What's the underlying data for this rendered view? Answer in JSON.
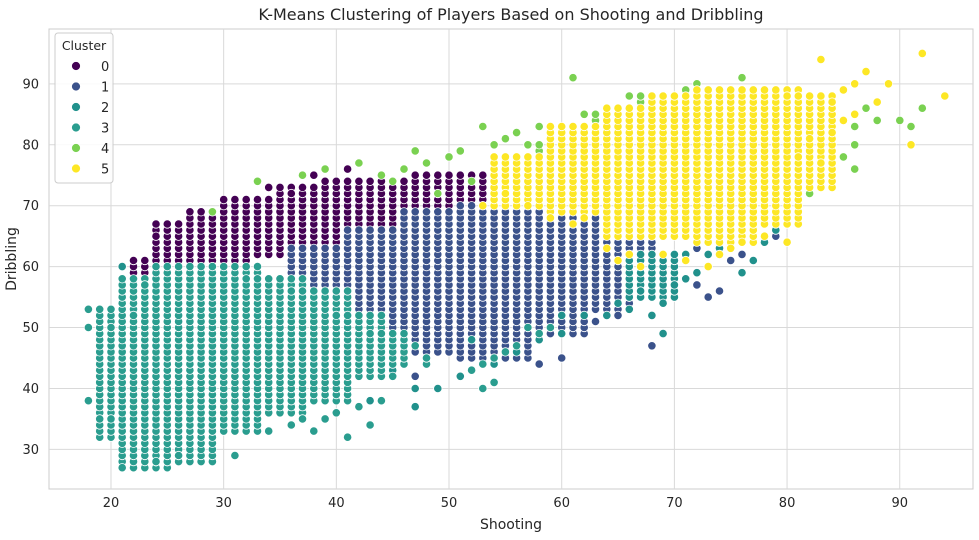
{
  "chart_data": {
    "type": "scatter",
    "title": "K-Means Clustering of Players Based on Shooting and Dribbling",
    "xlabel": "Shooting",
    "ylabel": "Dribbling",
    "xlim": [
      14.5,
      96.5
    ],
    "ylim": [
      23.5,
      99
    ],
    "xticks": [
      20,
      30,
      40,
      50,
      60,
      70,
      80,
      90
    ],
    "yticks": [
      30,
      40,
      50,
      60,
      70,
      80,
      90
    ],
    "grid": true,
    "legend": {
      "title": "Cluster",
      "position": "top-left"
    },
    "series": [
      {
        "name": "0",
        "color": "#440154",
        "regions": [
          [
            22,
            26,
            56,
            61
          ],
          [
            24,
            28,
            60,
            67
          ],
          [
            27,
            32,
            61,
            69
          ],
          [
            30,
            36,
            62,
            71
          ],
          [
            35,
            40,
            64,
            73
          ],
          [
            39,
            44,
            65,
            74
          ],
          [
            43,
            48,
            66,
            74
          ],
          [
            47,
            51,
            67,
            75
          ],
          [
            50,
            53,
            69,
            75
          ]
        ],
        "points": [
          [
            22,
            61
          ],
          [
            24,
            65
          ],
          [
            34,
            73
          ],
          [
            36,
            72
          ],
          [
            38,
            75
          ],
          [
            43,
            74
          ],
          [
            45,
            73
          ],
          [
            41,
            76
          ],
          [
            48,
            75
          ]
        ]
      },
      {
        "name": "1",
        "color": "#3b528b",
        "regions": [
          [
            36,
            42,
            50,
            63
          ],
          [
            41,
            47,
            48,
            66
          ],
          [
            46,
            52,
            46,
            69
          ],
          [
            51,
            57,
            45,
            70
          ],
          [
            56,
            62,
            49,
            70
          ],
          [
            61,
            66,
            53,
            70
          ],
          [
            65,
            68,
            55,
            68
          ]
        ],
        "points": [
          [
            37,
            48
          ],
          [
            40,
            46
          ],
          [
            44,
            44
          ],
          [
            47,
            42
          ],
          [
            58,
            44
          ],
          [
            60,
            45
          ],
          [
            63,
            51
          ],
          [
            68,
            47
          ],
          [
            73,
            55
          ],
          [
            74,
            56
          ],
          [
            75,
            61
          ],
          [
            77,
            66
          ],
          [
            79,
            65
          ],
          [
            72,
            63
          ],
          [
            70,
            60
          ],
          [
            76,
            62
          ],
          [
            70,
            55
          ],
          [
            65,
            52
          ],
          [
            72,
            57
          ],
          [
            78,
            68
          ]
        ]
      },
      {
        "name": "2",
        "color": "#21918c",
        "regions": [
          [
            66,
            70,
            55,
            62
          ]
        ],
        "points": [
          [
            21,
            55
          ],
          [
            22,
            56
          ],
          [
            21,
            60
          ],
          [
            34,
            45
          ],
          [
            37,
            44
          ],
          [
            39,
            42
          ],
          [
            41,
            40
          ],
          [
            42,
            42
          ],
          [
            43,
            38
          ],
          [
            45,
            43
          ],
          [
            47,
            37
          ],
          [
            47,
            40
          ],
          [
            49,
            40
          ],
          [
            51,
            42
          ],
          [
            52,
            43
          ],
          [
            52,
            48
          ],
          [
            54,
            44
          ],
          [
            56,
            46
          ],
          [
            58,
            48
          ],
          [
            60,
            49
          ],
          [
            60,
            52
          ],
          [
            62,
            52
          ],
          [
            64,
            52
          ],
          [
            65,
            54
          ],
          [
            66,
            53
          ],
          [
            67,
            56
          ],
          [
            68,
            52
          ],
          [
            69,
            49
          ],
          [
            69,
            54
          ],
          [
            70,
            57
          ],
          [
            71,
            58
          ],
          [
            72,
            59
          ],
          [
            73,
            62
          ],
          [
            74,
            63
          ],
          [
            76,
            59
          ],
          [
            77,
            61
          ],
          [
            78,
            64
          ],
          [
            79,
            66
          ],
          [
            80,
            67
          ],
          [
            81,
            68
          ],
          [
            67,
            59
          ],
          [
            69,
            61
          ],
          [
            71,
            62
          ]
        ]
      },
      {
        "name": "3",
        "color": "#2a9d8f",
        "regions": [
          [
            19,
            22,
            32,
            53
          ],
          [
            21,
            25,
            27,
            58
          ],
          [
            24,
            29,
            28,
            60
          ],
          [
            28,
            33,
            33,
            60
          ],
          [
            32,
            37,
            36,
            58
          ],
          [
            36,
            41,
            38,
            56
          ],
          [
            40,
            44,
            42,
            52
          ],
          [
            43,
            46,
            44,
            49
          ]
        ],
        "points": [
          [
            18,
            38
          ],
          [
            18,
            50
          ],
          [
            18,
            53
          ],
          [
            19,
            35
          ],
          [
            20,
            35
          ],
          [
            21,
            27
          ],
          [
            24,
            28
          ],
          [
            26,
            29
          ],
          [
            31,
            29
          ],
          [
            34,
            33
          ],
          [
            36,
            34
          ],
          [
            37,
            35
          ],
          [
            38,
            33
          ],
          [
            39,
            35
          ],
          [
            40,
            36
          ],
          [
            41,
            32
          ],
          [
            42,
            37
          ],
          [
            43,
            34
          ],
          [
            44,
            38
          ],
          [
            45,
            42
          ],
          [
            48,
            44
          ],
          [
            52,
            43
          ],
          [
            53,
            44
          ],
          [
            54,
            45
          ],
          [
            55,
            46
          ],
          [
            56,
            47
          ],
          [
            57,
            50
          ],
          [
            58,
            49
          ],
          [
            59,
            50
          ],
          [
            20,
            50
          ],
          [
            22,
            52
          ],
          [
            23,
            57
          ],
          [
            47,
            47
          ],
          [
            48,
            45
          ],
          [
            53,
            40
          ],
          [
            54,
            41
          ]
        ]
      },
      {
        "name": "4",
        "color": "#7ad151",
        "regions": [
          [
            58,
            64,
            72,
            80
          ],
          [
            63,
            68,
            75,
            85
          ],
          [
            67,
            72,
            76,
            88
          ],
          [
            71,
            76,
            77,
            89
          ],
          [
            75,
            80,
            78,
            88
          ],
          [
            79,
            83,
            76,
            86
          ]
        ],
        "points": [
          [
            29,
            69
          ],
          [
            33,
            74
          ],
          [
            37,
            75
          ],
          [
            39,
            76
          ],
          [
            42,
            77
          ],
          [
            44,
            75
          ],
          [
            46,
            76
          ],
          [
            47,
            79
          ],
          [
            48,
            77
          ],
          [
            50,
            78
          ],
          [
            51,
            79
          ],
          [
            53,
            83
          ],
          [
            54,
            80
          ],
          [
            55,
            81
          ],
          [
            56,
            82
          ],
          [
            57,
            80
          ],
          [
            58,
            83
          ],
          [
            59,
            81
          ],
          [
            61,
            91
          ],
          [
            62,
            85
          ],
          [
            66,
            88
          ],
          [
            70,
            87
          ],
          [
            72,
            90
          ],
          [
            74,
            89
          ],
          [
            76,
            91
          ],
          [
            78,
            89
          ],
          [
            80,
            88
          ],
          [
            82,
            87
          ],
          [
            84,
            85
          ],
          [
            86,
            83
          ],
          [
            86,
            80
          ],
          [
            87,
            86
          ],
          [
            88,
            84
          ],
          [
            90,
            84
          ],
          [
            91,
            83
          ],
          [
            92,
            86
          ],
          [
            83,
            79
          ],
          [
            84,
            81
          ],
          [
            85,
            78
          ],
          [
            86,
            76
          ],
          [
            80,
            70
          ],
          [
            82,
            72
          ],
          [
            79,
            69
          ],
          [
            81,
            74
          ],
          [
            83,
            75
          ],
          [
            60,
            73
          ],
          [
            62,
            75
          ],
          [
            56,
            76
          ],
          [
            52,
            74
          ],
          [
            49,
            72
          ],
          [
            45,
            74
          ]
        ]
      },
      {
        "name": "5",
        "color": "#fde725",
        "regions": [
          [
            54,
            60,
            70,
            78
          ],
          [
            59,
            65,
            69,
            83
          ],
          [
            64,
            69,
            65,
            86
          ],
          [
            68,
            73,
            65,
            88
          ],
          [
            72,
            77,
            64,
            89
          ],
          [
            76,
            81,
            67,
            89
          ],
          [
            80,
            84,
            73,
            88
          ]
        ],
        "points": [
          [
            53,
            70
          ],
          [
            55,
            72
          ],
          [
            57,
            70
          ],
          [
            59,
            68
          ],
          [
            61,
            67
          ],
          [
            62,
            68
          ],
          [
            64,
            63
          ],
          [
            65,
            61
          ],
          [
            66,
            62
          ],
          [
            67,
            60
          ],
          [
            69,
            62
          ],
          [
            71,
            61
          ],
          [
            73,
            60
          ],
          [
            74,
            62
          ],
          [
            75,
            63
          ],
          [
            76,
            64
          ],
          [
            78,
            65
          ],
          [
            80,
            64
          ],
          [
            83,
            94
          ],
          [
            86,
            90
          ],
          [
            87,
            92
          ],
          [
            88,
            87
          ],
          [
            89,
            90
          ],
          [
            91,
            80
          ],
          [
            92,
            95
          ],
          [
            94,
            88
          ],
          [
            85,
            89
          ],
          [
            84,
            87
          ],
          [
            86,
            85
          ],
          [
            82,
            81
          ],
          [
            81,
            78
          ],
          [
            83,
            77
          ],
          [
            84,
            82
          ],
          [
            85,
            84
          ]
        ]
      }
    ]
  }
}
